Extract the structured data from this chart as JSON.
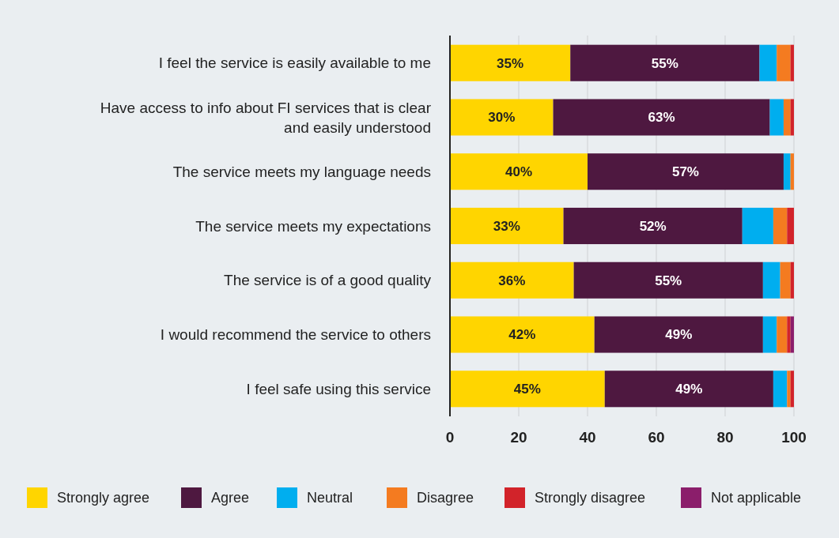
{
  "chart_data": {
    "type": "bar",
    "orientation": "horizontal",
    "stacked": true,
    "categories": [
      "I feel the service is easily available to me",
      "Have access to info about FI services that is clear and easily understood",
      "The service meets my language needs",
      "The service meets my expectations",
      "The service is of a good quality",
      "I would recommend the service to others",
      "I feel safe using this service"
    ],
    "series": [
      {
        "name": "Strongly agree",
        "color": "#ffd500",
        "values": [
          35,
          30,
          40,
          33,
          36,
          42,
          45
        ],
        "value_labels": [
          "35%",
          "30%",
          "40%",
          "33%",
          "36%",
          "42%",
          "45%"
        ]
      },
      {
        "name": "Agree",
        "color": "#4e1840",
        "values": [
          55,
          63,
          57,
          52,
          55,
          49,
          49
        ],
        "value_labels": [
          "55%",
          "63%",
          "57%",
          "52%",
          "55%",
          "49%",
          "49%"
        ]
      },
      {
        "name": "Neutral",
        "color": "#00aeef",
        "values": [
          5,
          4,
          2,
          9,
          5,
          4,
          4
        ]
      },
      {
        "name": "Disagree",
        "color": "#f47b20",
        "values": [
          4,
          2,
          1,
          4,
          3,
          3,
          1
        ]
      },
      {
        "name": "Strongly disagree",
        "color": "#d2232a",
        "values": [
          1,
          1,
          0,
          2,
          1,
          1,
          1
        ]
      },
      {
        "name": "Not applicable",
        "color": "#8b1e6b",
        "values": [
          0,
          0,
          0,
          0,
          0,
          1,
          0
        ]
      }
    ],
    "xlim": [
      0,
      100
    ],
    "xticks": [
      0,
      20,
      40,
      60,
      80,
      100
    ],
    "grid": "x",
    "legend": "bottom"
  }
}
